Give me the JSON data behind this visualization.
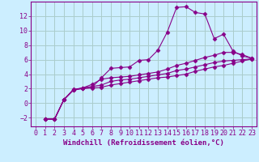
{
  "background_color": "#cceeff",
  "grid_color": "#aacccc",
  "line_color": "#880088",
  "marker": "D",
  "markersize": 2.5,
  "xlabel": "Windchill (Refroidissement éolien,°C)",
  "xlabel_fontsize": 6.5,
  "tick_fontsize": 6,
  "xlim": [
    -0.5,
    23.5
  ],
  "ylim": [
    -3.2,
    14.0
  ],
  "yticks": [
    -2,
    0,
    2,
    4,
    6,
    8,
    10,
    12
  ],
  "xticks": [
    0,
    1,
    2,
    3,
    4,
    5,
    6,
    7,
    8,
    9,
    10,
    11,
    12,
    13,
    14,
    15,
    16,
    17,
    18,
    19,
    20,
    21,
    22,
    23
  ],
  "series": [
    [
      null,
      -2.2,
      -2.2,
      0.5,
      1.8,
      2.1,
      2.2,
      3.5,
      4.8,
      4.9,
      5.0,
      5.9,
      6.0,
      7.3,
      9.8,
      13.2,
      13.3,
      12.5,
      12.3,
      8.9,
      9.5,
      7.2,
      6.5,
      6.2
    ],
    [
      null,
      -2.2,
      -2.2,
      0.5,
      1.8,
      2.1,
      2.6,
      3.3,
      3.5,
      3.6,
      3.7,
      3.9,
      4.1,
      4.3,
      4.7,
      5.2,
      5.5,
      5.9,
      6.3,
      6.6,
      7.0,
      7.0,
      6.7,
      6.2
    ],
    [
      null,
      -2.2,
      -2.2,
      0.5,
      1.9,
      2.1,
      2.3,
      2.5,
      3.0,
      3.2,
      3.3,
      3.5,
      3.7,
      3.9,
      4.1,
      4.5,
      4.7,
      5.0,
      5.3,
      5.6,
      5.8,
      5.9,
      6.0,
      6.1
    ],
    [
      null,
      -2.2,
      -2.2,
      0.5,
      1.8,
      2.0,
      2.1,
      2.2,
      2.5,
      2.7,
      2.9,
      3.1,
      3.3,
      3.5,
      3.6,
      3.8,
      4.0,
      4.4,
      4.7,
      5.0,
      5.2,
      5.5,
      5.8,
      6.1
    ]
  ]
}
